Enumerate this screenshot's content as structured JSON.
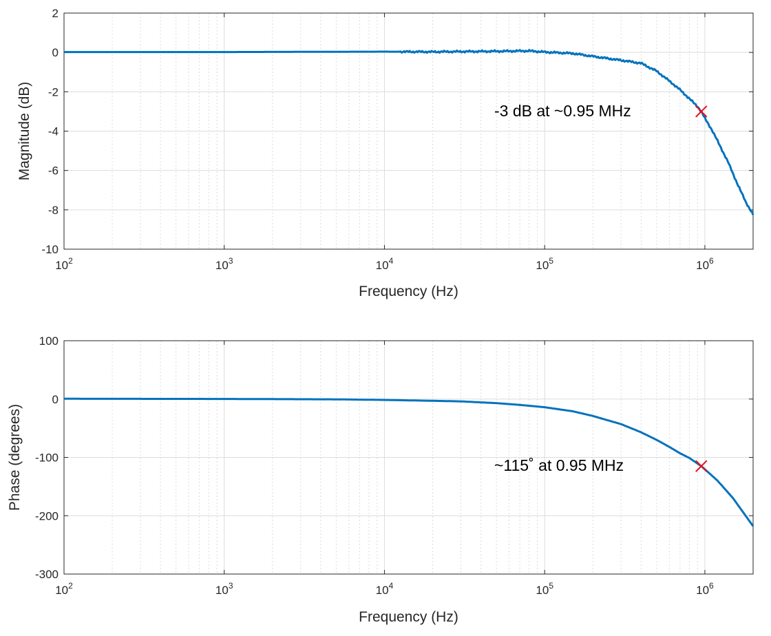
{
  "chart_data": [
    {
      "type": "line",
      "name": "magnitude",
      "xscale": "log",
      "xlim": [
        100,
        2000000
      ],
      "ylim": [
        -10,
        2
      ],
      "xticks": [
        100,
        1000,
        10000,
        100000,
        1000000
      ],
      "xtick_labels": [
        {
          "base": "10",
          "exp": "2"
        },
        {
          "base": "10",
          "exp": "3"
        },
        {
          "base": "10",
          "exp": "4"
        },
        {
          "base": "10",
          "exp": "5"
        },
        {
          "base": "10",
          "exp": "6"
        }
      ],
      "yticks": [
        2,
        0,
        -2,
        -4,
        -6,
        -8,
        -10
      ],
      "ytick_labels": [
        "2",
        "0",
        "-2",
        "-4",
        "-6",
        "-8",
        "-10"
      ],
      "xlabel": "Frequency (Hz)",
      "ylabel": "Magnitude (dB)",
      "grid": true,
      "series": [
        {
          "name": "Magnitude",
          "color": "#0072BD",
          "points": [
            [
              100,
              0.02
            ],
            [
              1000,
              0.02
            ],
            [
              10000,
              0.04
            ],
            [
              20000,
              0.03
            ],
            [
              50000,
              0.06
            ],
            [
              80000,
              0.08
            ],
            [
              100000,
              0.02
            ],
            [
              150000,
              -0.05
            ],
            [
              200000,
              -0.2
            ],
            [
              300000,
              -0.4
            ],
            [
              400000,
              -0.55
            ],
            [
              500000,
              -0.95
            ],
            [
              600000,
              -1.45
            ],
            [
              700000,
              -1.9
            ],
            [
              800000,
              -2.35
            ],
            [
              900000,
              -2.75
            ],
            [
              950000,
              -3.0
            ],
            [
              1000000,
              -3.35
            ],
            [
              1100000,
              -3.9
            ],
            [
              1200000,
              -4.5
            ],
            [
              1400000,
              -5.6
            ],
            [
              1600000,
              -6.7
            ],
            [
              1800000,
              -7.6
            ],
            [
              2000000,
              -8.25
            ]
          ]
        }
      ],
      "annotations": [
        {
          "text": "-3 dB at ~0.95 MHz",
          "x": 950000,
          "y": -3.0,
          "marker": "x",
          "color": "#E8101A"
        }
      ]
    },
    {
      "type": "line",
      "name": "phase",
      "xscale": "log",
      "xlim": [
        100,
        2000000
      ],
      "ylim": [
        -300,
        100
      ],
      "xticks": [
        100,
        1000,
        10000,
        100000,
        1000000
      ],
      "xtick_labels": [
        {
          "base": "10",
          "exp": "2"
        },
        {
          "base": "10",
          "exp": "3"
        },
        {
          "base": "10",
          "exp": "4"
        },
        {
          "base": "10",
          "exp": "5"
        },
        {
          "base": "10",
          "exp": "6"
        }
      ],
      "yticks": [
        100,
        0,
        -100,
        -200,
        -300
      ],
      "ytick_labels": [
        "100",
        "0",
        "-100",
        "-200",
        "-300"
      ],
      "xlabel": "Frequency (Hz)",
      "ylabel": "Phase (degrees)",
      "grid": true,
      "series": [
        {
          "name": "Phase",
          "color": "#0072BD",
          "points": [
            [
              100,
              0.5
            ],
            [
              1000,
              0.2
            ],
            [
              5000,
              -0.5
            ],
            [
              10000,
              -1.5
            ],
            [
              20000,
              -3
            ],
            [
              30000,
              -4
            ],
            [
              50000,
              -7
            ],
            [
              70000,
              -10
            ],
            [
              100000,
              -14
            ],
            [
              150000,
              -21
            ],
            [
              200000,
              -29
            ],
            [
              300000,
              -43
            ],
            [
              400000,
              -57
            ],
            [
              500000,
              -70
            ],
            [
              600000,
              -82
            ],
            [
              700000,
              -93
            ],
            [
              800000,
              -101
            ],
            [
              950000,
              -115
            ],
            [
              1200000,
              -140
            ],
            [
              1500000,
              -170
            ],
            [
              2000000,
              -218
            ]
          ]
        }
      ],
      "annotations": [
        {
          "text": "~115˚  at 0.95 MHz",
          "x": 950000,
          "y": -115,
          "marker": "x",
          "color": "#E8101A"
        }
      ]
    }
  ]
}
